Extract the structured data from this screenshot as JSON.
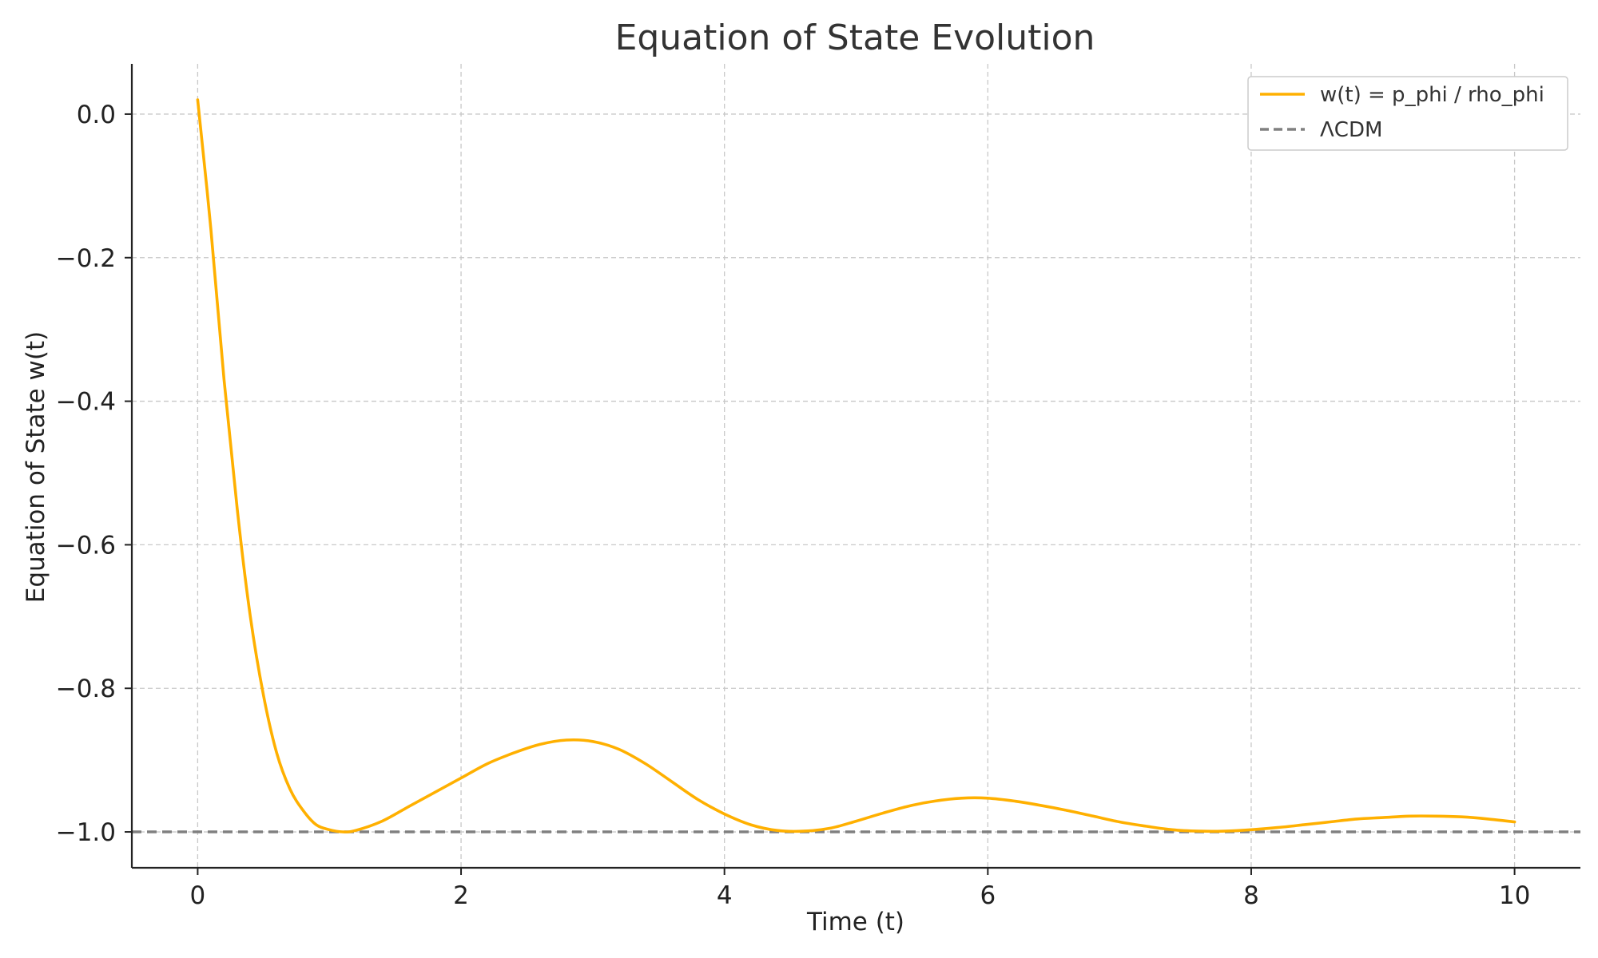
{
  "chart_data": {
    "type": "line",
    "title": "Equation of State Evolution",
    "xlabel": "Time (t)",
    "ylabel": "Equation of State w(t)",
    "xlim": [
      -0.5,
      10.5
    ],
    "ylim": [
      -1.05,
      0.07
    ],
    "xticks": [
      0,
      2,
      4,
      6,
      8,
      10
    ],
    "xtick_labels": [
      "0",
      "2",
      "4",
      "6",
      "8",
      "10"
    ],
    "yticks": [
      0.0,
      -0.2,
      -0.4,
      -0.6,
      -0.8,
      -1.0
    ],
    "ytick_labels": [
      "0.0",
      "−0.2",
      "−0.4",
      "−0.6",
      "−0.8",
      "−1.0"
    ],
    "grid": true,
    "legend_position": "top-right",
    "series": [
      {
        "name": "w(t) = p_phi / rho_phi",
        "color": "#FFB000",
        "style": "solid",
        "x": [
          0.0,
          0.1,
          0.2,
          0.3,
          0.4,
          0.5,
          0.6,
          0.7,
          0.8,
          0.9,
          1.0,
          1.1,
          1.2,
          1.4,
          1.6,
          1.8,
          2.0,
          2.2,
          2.4,
          2.6,
          2.8,
          3.0,
          3.2,
          3.4,
          3.6,
          3.8,
          4.0,
          4.2,
          4.4,
          4.6,
          4.8,
          5.0,
          5.2,
          5.4,
          5.6,
          5.8,
          6.0,
          6.2,
          6.4,
          6.6,
          6.8,
          7.0,
          7.2,
          7.4,
          7.6,
          7.8,
          8.0,
          8.2,
          8.4,
          8.6,
          8.8,
          9.0,
          9.2,
          9.4,
          9.6,
          9.8,
          10.0
        ],
        "y": [
          0.02,
          -0.16,
          -0.37,
          -0.55,
          -0.7,
          -0.81,
          -0.89,
          -0.94,
          -0.97,
          -0.99,
          -0.997,
          -1.0,
          -0.998,
          -0.985,
          -0.965,
          -0.945,
          -0.925,
          -0.905,
          -0.89,
          -0.878,
          -0.872,
          -0.874,
          -0.885,
          -0.905,
          -0.93,
          -0.955,
          -0.975,
          -0.99,
          -0.998,
          -0.999,
          -0.995,
          -0.985,
          -0.974,
          -0.964,
          -0.957,
          -0.953,
          -0.953,
          -0.957,
          -0.963,
          -0.97,
          -0.978,
          -0.986,
          -0.992,
          -0.997,
          -0.999,
          -0.999,
          -0.997,
          -0.994,
          -0.99,
          -0.986,
          -0.982,
          -0.98,
          -0.978,
          -0.978,
          -0.979,
          -0.982,
          -0.986
        ]
      },
      {
        "name": "ΛCDM",
        "color": "#808080",
        "style": "dashed",
        "x": [
          -0.5,
          10.5
        ],
        "y": [
          -1.0,
          -1.0
        ]
      }
    ]
  }
}
